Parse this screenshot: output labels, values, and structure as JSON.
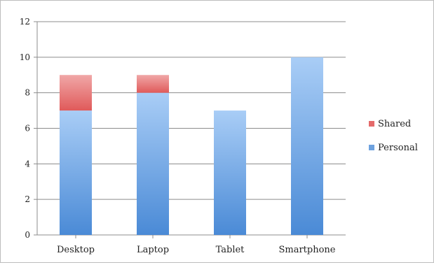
{
  "chart_data": {
    "type": "bar",
    "stacked": true,
    "categories": [
      "Desktop",
      "Laptop",
      "Tablet",
      "Smartphone"
    ],
    "series": [
      {
        "name": "Personal",
        "values": [
          7,
          8,
          7,
          10
        ],
        "color": "#6ea2df"
      },
      {
        "name": "Shared",
        "values": [
          2,
          1,
          0,
          0
        ],
        "color": "#e46a6a"
      }
    ],
    "ylim": [
      0,
      12
    ],
    "yticks": [
      0,
      2,
      4,
      6,
      8,
      10,
      12
    ],
    "ytick_labels": [
      "0",
      "2",
      "4",
      "6",
      "8",
      "10",
      "12"
    ],
    "grid": true,
    "legend": {
      "position": "right",
      "entries": [
        "Shared",
        "Personal"
      ]
    },
    "title": "",
    "xlabel": "",
    "ylabel": ""
  }
}
